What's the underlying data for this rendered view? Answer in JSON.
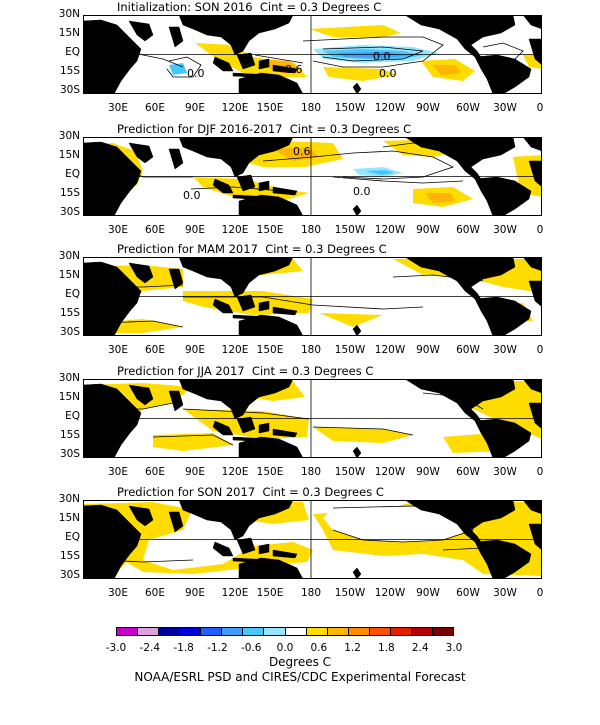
{
  "panels": [
    {
      "title": "Initialization: SON 2016  Cint = 0.3 Degrees C",
      "contour_labels": [
        "0.0",
        "0.0",
        "0.0",
        "-0.6",
        "0.0"
      ]
    },
    {
      "title": "Prediction for DJF 2016-2017  Cint = 0.3 Degrees C",
      "contour_labels": [
        "0.6",
        "0.0",
        "0.0"
      ]
    },
    {
      "title": "Prediction for MAM 2017  Cint = 0.3 Degrees C",
      "contour_labels": []
    },
    {
      "title": "Prediction for JJA 2017  Cint = 0.3 Degrees C",
      "contour_labels": []
    },
    {
      "title": "Prediction for SON 2017  Cint = 0.3 Degrees C",
      "contour_labels": []
    }
  ],
  "lat_labels": [
    "30N",
    "15N",
    "EQ",
    "15S",
    "30S"
  ],
  "lon_labels": [
    "30E",
    "60E",
    "90E",
    "120E",
    "150E",
    "180",
    "150W",
    "120W",
    "90W",
    "60W",
    "30W",
    "0"
  ],
  "colorbar": {
    "colors": [
      "#c800c8",
      "#e0a0e0",
      "#0000a0",
      "#0000dc",
      "#2060ff",
      "#3c9cff",
      "#46c8ff",
      "#96e6ff",
      "#ffffff",
      "#ffdc00",
      "#ffb400",
      "#ff8c00",
      "#ff5000",
      "#e61e00",
      "#b40000",
      "#780000"
    ],
    "ticks": [
      "-3.0",
      "-2.4",
      "-1.8",
      "-1.2",
      "-0.6",
      "0.0",
      "0.6",
      "1.2",
      "1.8",
      "2.4",
      "3.0"
    ],
    "label": "Degrees C"
  },
  "credit": "NOAA/ESRL PSD and CIRES/CDC Experimental Forecast"
}
